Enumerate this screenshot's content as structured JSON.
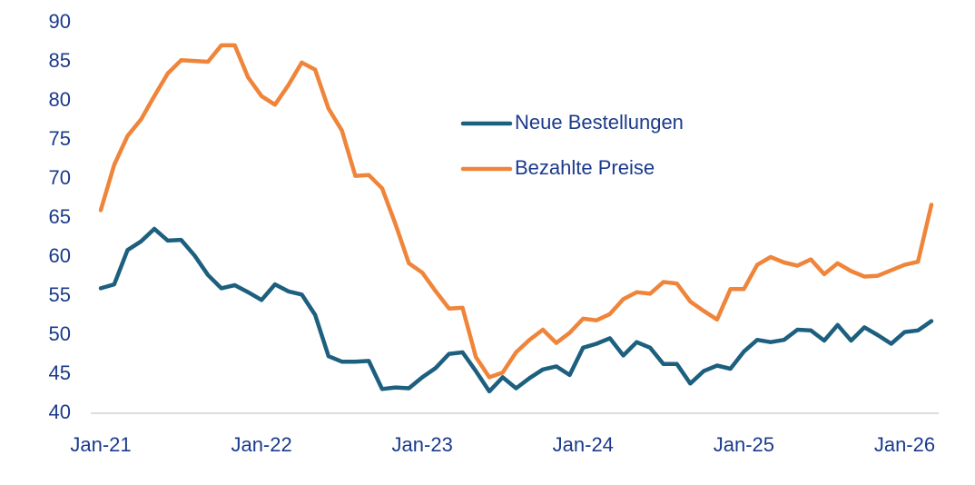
{
  "chart_data": {
    "type": "line",
    "categories": [
      "Jan-21",
      null,
      null,
      null,
      null,
      null,
      null,
      null,
      null,
      null,
      null,
      null,
      "Jan-22",
      null,
      null,
      null,
      null,
      null,
      null,
      null,
      null,
      null,
      null,
      null,
      "Jan-23",
      null,
      null,
      null,
      null,
      null,
      null,
      null,
      null,
      null,
      null,
      null,
      "Jan-24",
      null,
      null,
      null,
      null,
      null,
      null,
      null,
      null,
      null,
      null,
      null,
      "Jan-25",
      null,
      null,
      null,
      null,
      null,
      null,
      null,
      null,
      null,
      null,
      null,
      "Jan-26",
      null,
      null
    ],
    "series": [
      {
        "name": "Neue Bestellungen",
        "color": "#1d5f7e",
        "values": [
          56.0,
          56.5,
          60.9,
          62.0,
          63.6,
          62.1,
          62.2,
          60.2,
          57.7,
          56.0,
          56.4,
          55.5,
          54.5,
          56.5,
          55.6,
          55.2,
          52.6,
          47.3,
          46.6,
          46.6,
          46.7,
          43.1,
          43.3,
          43.2,
          44.6,
          45.8,
          47.6,
          47.8,
          45.4,
          42.8,
          44.6,
          43.2,
          44.5,
          45.6,
          46.0,
          44.9,
          48.4,
          48.9,
          49.6,
          47.4,
          49.1,
          48.4,
          46.3,
          46.3,
          43.8,
          45.4,
          46.1,
          45.7,
          47.9,
          49.4,
          49.1,
          49.4,
          50.7,
          50.6,
          49.3,
          51.3,
          49.3,
          51.0,
          50.0,
          48.9,
          50.4,
          50.6,
          51.8
        ]
      },
      {
        "name": "Bezahlte Preise",
        "color": "#ef853a",
        "values": [
          66.0,
          71.8,
          75.5,
          77.6,
          80.6,
          83.5,
          85.2,
          85.1,
          85.0,
          87.1,
          87.1,
          83.0,
          80.6,
          79.5,
          82.0,
          84.9,
          84.0,
          79.0,
          76.2,
          70.4,
          70.5,
          68.8,
          64.2,
          59.2,
          58.0,
          55.6,
          53.4,
          53.5,
          47.2,
          44.6,
          45.2,
          47.8,
          49.4,
          50.7,
          49.0,
          50.3,
          52.1,
          51.9,
          52.7,
          54.6,
          55.5,
          55.3,
          56.8,
          56.6,
          54.3,
          53.1,
          52.0,
          55.9,
          55.9,
          59.0,
          60.0,
          59.3,
          58.9,
          59.7,
          57.8,
          59.2,
          58.2,
          57.5,
          57.6,
          58.3,
          59.0,
          59.4,
          66.7
        ]
      }
    ],
    "ylim": [
      40,
      90
    ],
    "yticks": [
      40,
      45,
      50,
      55,
      60,
      65,
      70,
      75,
      80,
      85,
      90
    ],
    "grid": false,
    "legend": "upper center"
  }
}
